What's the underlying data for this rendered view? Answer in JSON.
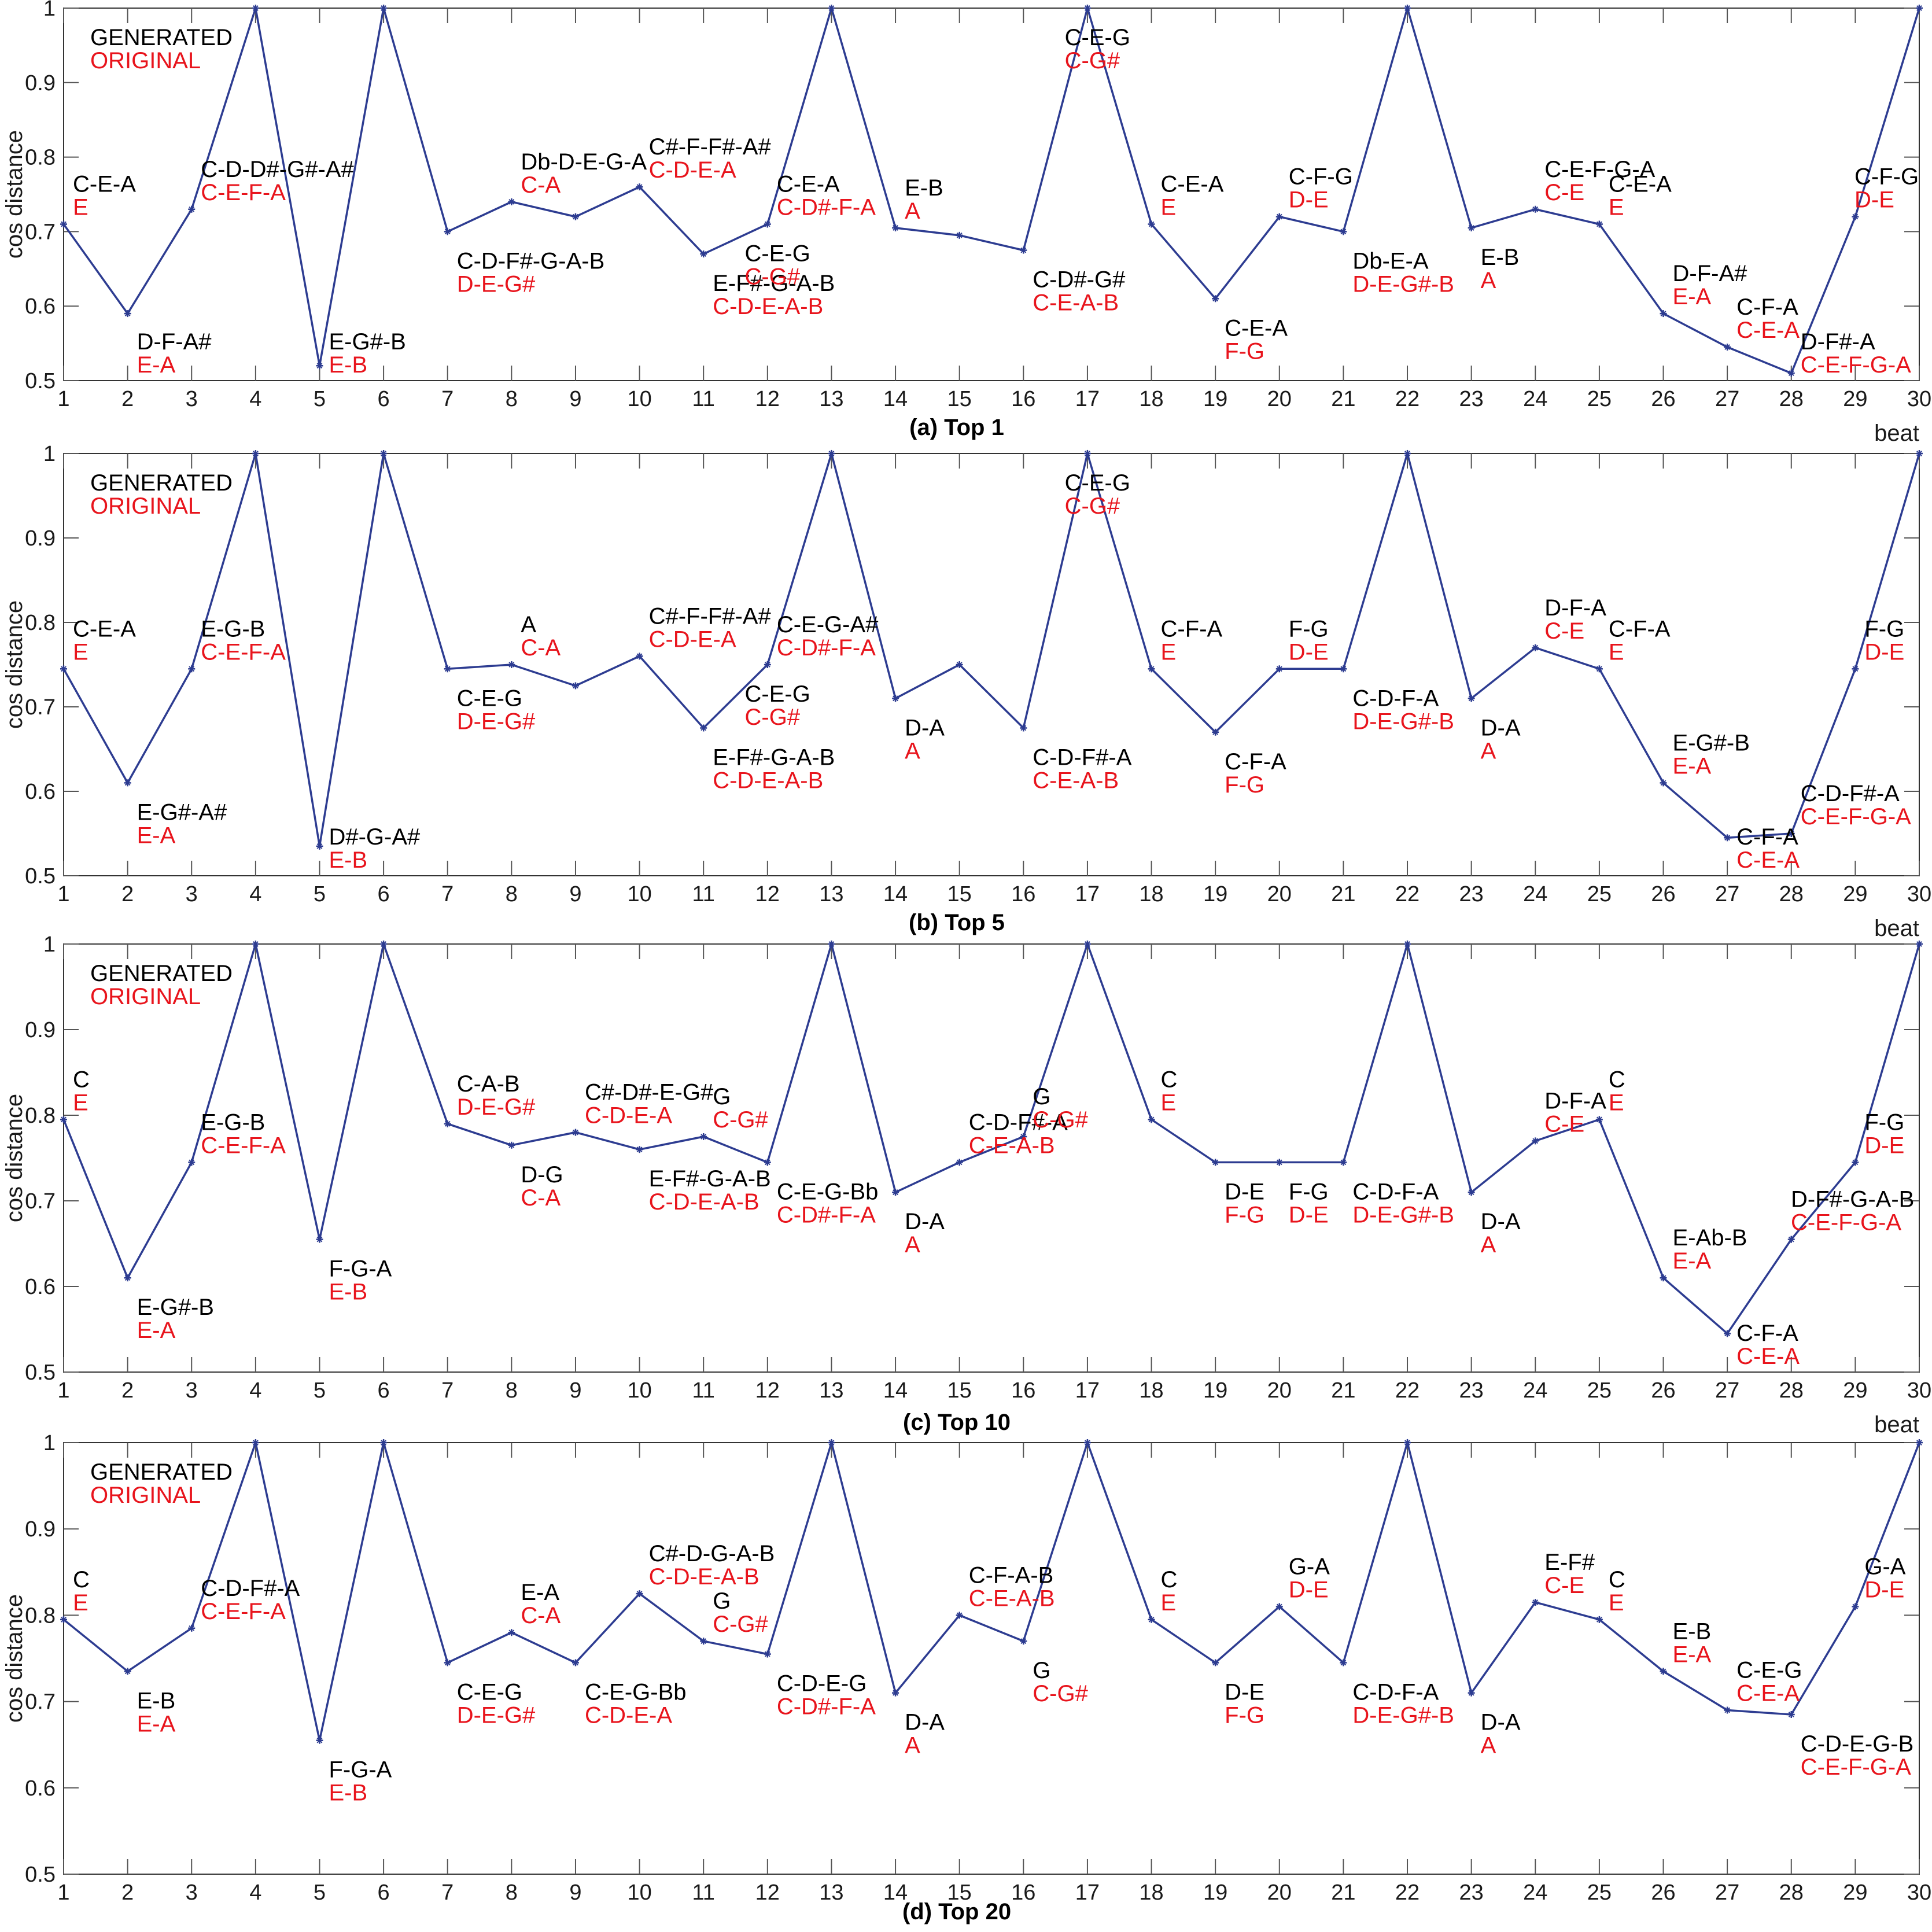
{
  "legend": {
    "generated": "GENERATED",
    "original": "ORIGINAL"
  },
  "colors": {
    "generated_text": "#000000",
    "original_text": "#e8141c",
    "line": "#2d3c91",
    "axis": "#333333",
    "grid": "#555555"
  },
  "chart_data": [
    {
      "type": "line",
      "title": "(a) Top 1",
      "xlabel": "beat",
      "ylabel": "cos distance",
      "xlim": [
        1,
        30
      ],
      "ylim": [
        0.5,
        1
      ],
      "yticks": [
        0.5,
        0.6,
        0.7,
        0.8,
        0.9,
        1
      ],
      "yticklabels": [
        "0.5",
        "0.6",
        "0.7",
        "0.8",
        "0.9",
        "1"
      ],
      "x": [
        1,
        2,
        3,
        4,
        5,
        6,
        7,
        8,
        9,
        10,
        11,
        12,
        13,
        14,
        15,
        16,
        17,
        18,
        19,
        20,
        21,
        22,
        23,
        24,
        25,
        26,
        27,
        28,
        29,
        30
      ],
      "xticklabels": [
        "1",
        "2",
        "3",
        "4",
        "5",
        "6",
        "7",
        "8",
        "9",
        "10",
        "11",
        "12",
        "13",
        "14",
        "15",
        "16",
        "17",
        "18",
        "19",
        "20",
        "21",
        "22",
        "23",
        "24",
        "25",
        "26",
        "27",
        "28",
        "29",
        "30"
      ],
      "values": [
        0.71,
        0.59,
        0.73,
        1.0,
        0.52,
        1.0,
        0.7,
        0.74,
        0.72,
        0.76,
        0.67,
        0.71,
        1.0,
        0.705,
        0.695,
        0.675,
        1.0,
        0.71,
        0.61,
        0.72,
        0.7,
        1.0,
        0.705,
        0.73,
        0.71,
        0.59,
        0.545,
        0.51,
        0.72,
        1.0
      ],
      "annotations": [
        {
          "beat": 1,
          "generated": "C-E-A",
          "original": "E"
        },
        {
          "beat": 2,
          "generated": "D-F-A#",
          "original": "E-A"
        },
        {
          "beat": 3,
          "generated": "C-D-D#-G#-A#",
          "original": "C-E-F-A"
        },
        {
          "beat": 5,
          "generated": "E-G#-B",
          "original": "E-B"
        },
        {
          "beat": 7,
          "generated": "C-D-F#-G-A-B",
          "original": "D-E-G#"
        },
        {
          "beat": 8,
          "generated": "Db-D-E-G-A",
          "original": "C-A"
        },
        {
          "beat": 10,
          "generated": "C#-F-F#-A#",
          "original": "C-D-E-A"
        },
        {
          "beat": 11,
          "generated": "E-F#-G-A-B",
          "original": "C-D-E-A-B"
        },
        {
          "beat": 11.5,
          "generated": "C-E-G",
          "original": "C-G#"
        },
        {
          "beat": 12,
          "generated": "C-E-A",
          "original": "C-D#-F-A"
        },
        {
          "beat": 14,
          "generated": "E-B",
          "original": "A"
        },
        {
          "beat": 16,
          "generated": "C-D#-G#",
          "original": "C-E-A-B"
        },
        {
          "beat": 16.5,
          "generated": "C-E-G",
          "original": "C-G#"
        },
        {
          "beat": 18,
          "generated": "C-E-A",
          "original": "E"
        },
        {
          "beat": 19,
          "generated": "C-E-A",
          "original": "F-G"
        },
        {
          "beat": 20,
          "generated": "C-F-G",
          "original": "D-E"
        },
        {
          "beat": 21,
          "generated": "Db-E-A",
          "original": "D-E-G#-B"
        },
        {
          "beat": 23,
          "generated": "E-B",
          "original": "A"
        },
        {
          "beat": 24,
          "generated": "C-E-F-G-A",
          "original": "C-E"
        },
        {
          "beat": 25,
          "generated": "C-E-A",
          "original": "E"
        },
        {
          "beat": 26,
          "generated": "D-F-A#",
          "original": "E-A"
        },
        {
          "beat": 27,
          "generated": "C-F-A",
          "original": "C-E-A"
        },
        {
          "beat": 28,
          "generated": "D-F#-A",
          "original": "C-E-F-G-A"
        },
        {
          "beat": 29,
          "generated": "C-F-G",
          "original": "D-E"
        }
      ]
    },
    {
      "type": "line",
      "title": "(b) Top 5",
      "xlabel": "beat",
      "ylabel": "cos distance",
      "xlim": [
        1,
        30
      ],
      "ylim": [
        0.5,
        1
      ],
      "yticks": [
        0.5,
        0.6,
        0.7,
        0.8,
        0.9,
        1
      ],
      "yticklabels": [
        "0.5",
        "0.6",
        "0.7",
        "0.8",
        "0.9",
        "1"
      ],
      "x": [
        1,
        2,
        3,
        4,
        5,
        6,
        7,
        8,
        9,
        10,
        11,
        12,
        13,
        14,
        15,
        16,
        17,
        18,
        19,
        20,
        21,
        22,
        23,
        24,
        25,
        26,
        27,
        28,
        29,
        30
      ],
      "xticklabels": [
        "1",
        "2",
        "3",
        "4",
        "5",
        "6",
        "7",
        "8",
        "9",
        "10",
        "11",
        "12",
        "13",
        "14",
        "15",
        "16",
        "17",
        "18",
        "19",
        "20",
        "21",
        "22",
        "23",
        "24",
        "25",
        "26",
        "27",
        "28",
        "29",
        "30"
      ],
      "values": [
        0.745,
        0.61,
        0.745,
        1.0,
        0.535,
        1.0,
        0.745,
        0.75,
        0.725,
        0.76,
        0.675,
        0.75,
        1.0,
        0.71,
        0.75,
        0.675,
        1.0,
        0.745,
        0.67,
        0.745,
        0.745,
        1.0,
        0.71,
        0.77,
        0.745,
        0.61,
        0.545,
        0.55,
        0.745,
        1.0
      ],
      "annotations": [
        {
          "beat": 1,
          "generated": "C-E-A",
          "original": "E"
        },
        {
          "beat": 2,
          "generated": "E-G#-A#",
          "original": "E-A"
        },
        {
          "beat": 3,
          "generated": "E-G-B",
          "original": "C-E-F-A"
        },
        {
          "beat": 5,
          "generated": "D#-G-A#",
          "original": "E-B"
        },
        {
          "beat": 7,
          "generated": "C-E-G",
          "original": "D-E-G#"
        },
        {
          "beat": 8,
          "generated": "A",
          "original": "C-A"
        },
        {
          "beat": 10,
          "generated": "C#-F-F#-A#",
          "original": "C-D-E-A"
        },
        {
          "beat": 11,
          "generated": "E-F#-G-A-B",
          "original": "C-D-E-A-B"
        },
        {
          "beat": 11.5,
          "generated": "C-E-G",
          "original": "C-G#"
        },
        {
          "beat": 12,
          "generated": "C-E-G-A#",
          "original": "C-D#-F-A"
        },
        {
          "beat": 14,
          "generated": "D-A",
          "original": "A"
        },
        {
          "beat": 16,
          "generated": "C-D-F#-A",
          "original": "C-E-A-B"
        },
        {
          "beat": 16.5,
          "generated": "C-E-G",
          "original": "C-G#"
        },
        {
          "beat": 18,
          "generated": "C-F-A",
          "original": "E"
        },
        {
          "beat": 19,
          "generated": "C-F-A",
          "original": "F-G"
        },
        {
          "beat": 20,
          "generated": "F-G",
          "original": "D-E"
        },
        {
          "beat": 21,
          "generated": "C-D-F-A",
          "original": "D-E-G#-B"
        },
        {
          "beat": 23,
          "generated": "D-A",
          "original": "A"
        },
        {
          "beat": 24,
          "generated": "D-F-A",
          "original": "C-E"
        },
        {
          "beat": 25,
          "generated": "C-F-A",
          "original": "E"
        },
        {
          "beat": 26,
          "generated": "E-G#-B",
          "original": "E-A"
        },
        {
          "beat": 27,
          "generated": "C-F-A",
          "original": "C-E-A"
        },
        {
          "beat": 28,
          "generated": "C-D-F#-A",
          "original": "C-E-F-G-A"
        },
        {
          "beat": 29,
          "generated": "F-G",
          "original": "D-E"
        }
      ]
    },
    {
      "type": "line",
      "title": "(c) Top 10",
      "xlabel": "beat",
      "ylabel": "cos distance",
      "xlim": [
        1,
        30
      ],
      "ylim": [
        0.5,
        1
      ],
      "yticks": [
        0.5,
        0.6,
        0.7,
        0.8,
        0.9,
        1
      ],
      "yticklabels": [
        "0.5",
        "0.6",
        "0.7",
        "0.8",
        "0.9",
        "1"
      ],
      "x": [
        1,
        2,
        3,
        4,
        5,
        6,
        7,
        8,
        9,
        10,
        11,
        12,
        13,
        14,
        15,
        16,
        17,
        18,
        19,
        20,
        21,
        22,
        23,
        24,
        25,
        26,
        27,
        28,
        29,
        30
      ],
      "xticklabels": [
        "1",
        "2",
        "3",
        "4",
        "5",
        "6",
        "7",
        "8",
        "9",
        "10",
        "11",
        "12",
        "13",
        "14",
        "15",
        "16",
        "17",
        "18",
        "19",
        "20",
        "21",
        "22",
        "23",
        "24",
        "25",
        "26",
        "27",
        "28",
        "29",
        "30"
      ],
      "values": [
        0.795,
        0.61,
        0.745,
        1.0,
        0.655,
        1.0,
        0.79,
        0.765,
        0.78,
        0.76,
        0.775,
        0.745,
        1.0,
        0.71,
        0.745,
        0.775,
        1.0,
        0.795,
        0.745,
        0.745,
        0.745,
        1.0,
        0.71,
        0.77,
        0.795,
        0.61,
        0.545,
        0.655,
        0.745,
        1.0
      ],
      "annotations": [
        {
          "beat": 1,
          "generated": "C",
          "original": "E"
        },
        {
          "beat": 2,
          "generated": "E-G#-B",
          "original": "E-A"
        },
        {
          "beat": 3,
          "generated": "E-G-B",
          "original": "C-E-F-A"
        },
        {
          "beat": 5,
          "generated": "F-G-A",
          "original": "E-B"
        },
        {
          "beat": 7,
          "generated": "C-A-B",
          "original": "D-E-G#"
        },
        {
          "beat": 8,
          "generated": "D-G",
          "original": "C-A"
        },
        {
          "beat": 9,
          "generated": "C#-D#-E-G#",
          "original": "C-D-E-A"
        },
        {
          "beat": 10,
          "generated": "E-F#-G-A-B",
          "original": "C-D-E-A-B"
        },
        {
          "beat": 11,
          "generated": "G",
          "original": "C-G#"
        },
        {
          "beat": 12,
          "generated": "C-E-G-Bb",
          "original": "C-D#-F-A"
        },
        {
          "beat": 14,
          "generated": "D-A",
          "original": "A"
        },
        {
          "beat": 15,
          "generated": "C-D-F#-A",
          "original": "C-E-A-B"
        },
        {
          "beat": 16,
          "generated": "G",
          "original": "C-G#"
        },
        {
          "beat": 18,
          "generated": "C",
          "original": "E"
        },
        {
          "beat": 19,
          "generated": "D-E",
          "original": "F-G"
        },
        {
          "beat": 20,
          "generated": "F-G",
          "original": "D-E"
        },
        {
          "beat": 21,
          "generated": "C-D-F-A",
          "original": "D-E-G#-B"
        },
        {
          "beat": 23,
          "generated": "D-A",
          "original": "A"
        },
        {
          "beat": 24,
          "generated": "D-F-A",
          "original": "C-E"
        },
        {
          "beat": 25,
          "generated": "C",
          "original": "E"
        },
        {
          "beat": 26,
          "generated": "E-Ab-B",
          "original": "E-A"
        },
        {
          "beat": 27,
          "generated": "C-F-A",
          "original": "C-E-A"
        },
        {
          "beat": 28,
          "generated": "D-F#-G-A-B",
          "original": "C-E-F-G-A"
        },
        {
          "beat": 29,
          "generated": "F-G",
          "original": "D-E"
        }
      ]
    },
    {
      "type": "line",
      "title": "(d) Top 20",
      "xlabel": "",
      "ylabel": "cos distance",
      "xlim": [
        1,
        30
      ],
      "ylim": [
        0.5,
        1
      ],
      "yticks": [
        0.5,
        0.6,
        0.7,
        0.8,
        0.9,
        1
      ],
      "yticklabels": [
        "0.5",
        "0.6",
        "0.7",
        "0.8",
        "0.9",
        "1"
      ],
      "x": [
        1,
        2,
        3,
        4,
        5,
        6,
        7,
        8,
        9,
        10,
        11,
        12,
        13,
        14,
        15,
        16,
        17,
        18,
        19,
        20,
        21,
        22,
        23,
        24,
        25,
        26,
        27,
        28,
        29,
        30
      ],
      "xticklabels": [
        "1",
        "2",
        "3",
        "4",
        "5",
        "6",
        "7",
        "8",
        "9",
        "10",
        "11",
        "12",
        "13",
        "14",
        "15",
        "16",
        "17",
        "18",
        "19",
        "20",
        "21",
        "22",
        "23",
        "24",
        "25",
        "26",
        "27",
        "28",
        "29",
        "30"
      ],
      "values": [
        0.795,
        0.735,
        0.785,
        1.0,
        0.655,
        1.0,
        0.745,
        0.78,
        0.745,
        0.825,
        0.77,
        0.755,
        1.0,
        0.71,
        0.8,
        0.77,
        1.0,
        0.795,
        0.745,
        0.81,
        0.745,
        1.0,
        0.71,
        0.815,
        0.795,
        0.735,
        0.69,
        0.685,
        0.81,
        1.0
      ],
      "annotations": [
        {
          "beat": 1,
          "generated": "C",
          "original": "E"
        },
        {
          "beat": 2,
          "generated": "E-B",
          "original": "E-A"
        },
        {
          "beat": 3,
          "generated": "C-D-F#-A",
          "original": "C-E-F-A"
        },
        {
          "beat": 5,
          "generated": "F-G-A",
          "original": "E-B"
        },
        {
          "beat": 7,
          "generated": "C-E-G",
          "original": "D-E-G#"
        },
        {
          "beat": 8,
          "generated": "E-A",
          "original": "C-A"
        },
        {
          "beat": 9,
          "generated": "C-E-G-Bb",
          "original": "C-D-E-A"
        },
        {
          "beat": 10,
          "generated": "C#-D-G-A-B",
          "original": "C-D-E-A-B"
        },
        {
          "beat": 11,
          "generated": "G",
          "original": "C-G#"
        },
        {
          "beat": 12,
          "generated": "C-D-E-G",
          "original": "C-D#-F-A"
        },
        {
          "beat": 14,
          "generated": "D-A",
          "original": "A"
        },
        {
          "beat": 15,
          "generated": "C-F-A-B",
          "original": "C-E-A-B"
        },
        {
          "beat": 16,
          "generated": "G",
          "original": "C-G#"
        },
        {
          "beat": 18,
          "generated": "C",
          "original": "E"
        },
        {
          "beat": 19,
          "generated": "D-E",
          "original": "F-G"
        },
        {
          "beat": 20,
          "generated": "G-A",
          "original": "D-E"
        },
        {
          "beat": 21,
          "generated": "C-D-F-A",
          "original": "D-E-G#-B"
        },
        {
          "beat": 23,
          "generated": "D-A",
          "original": "A"
        },
        {
          "beat": 24,
          "generated": "E-F#",
          "original": "C-E"
        },
        {
          "beat": 25,
          "generated": "C",
          "original": "E"
        },
        {
          "beat": 26,
          "generated": "E-B",
          "original": "E-A"
        },
        {
          "beat": 27,
          "generated": "C-E-G",
          "original": "C-E-A"
        },
        {
          "beat": 28,
          "generated": "C-D-E-G-B",
          "original": "C-E-F-G-A"
        },
        {
          "beat": 29,
          "generated": "G-A",
          "original": "D-E"
        }
      ]
    }
  ]
}
